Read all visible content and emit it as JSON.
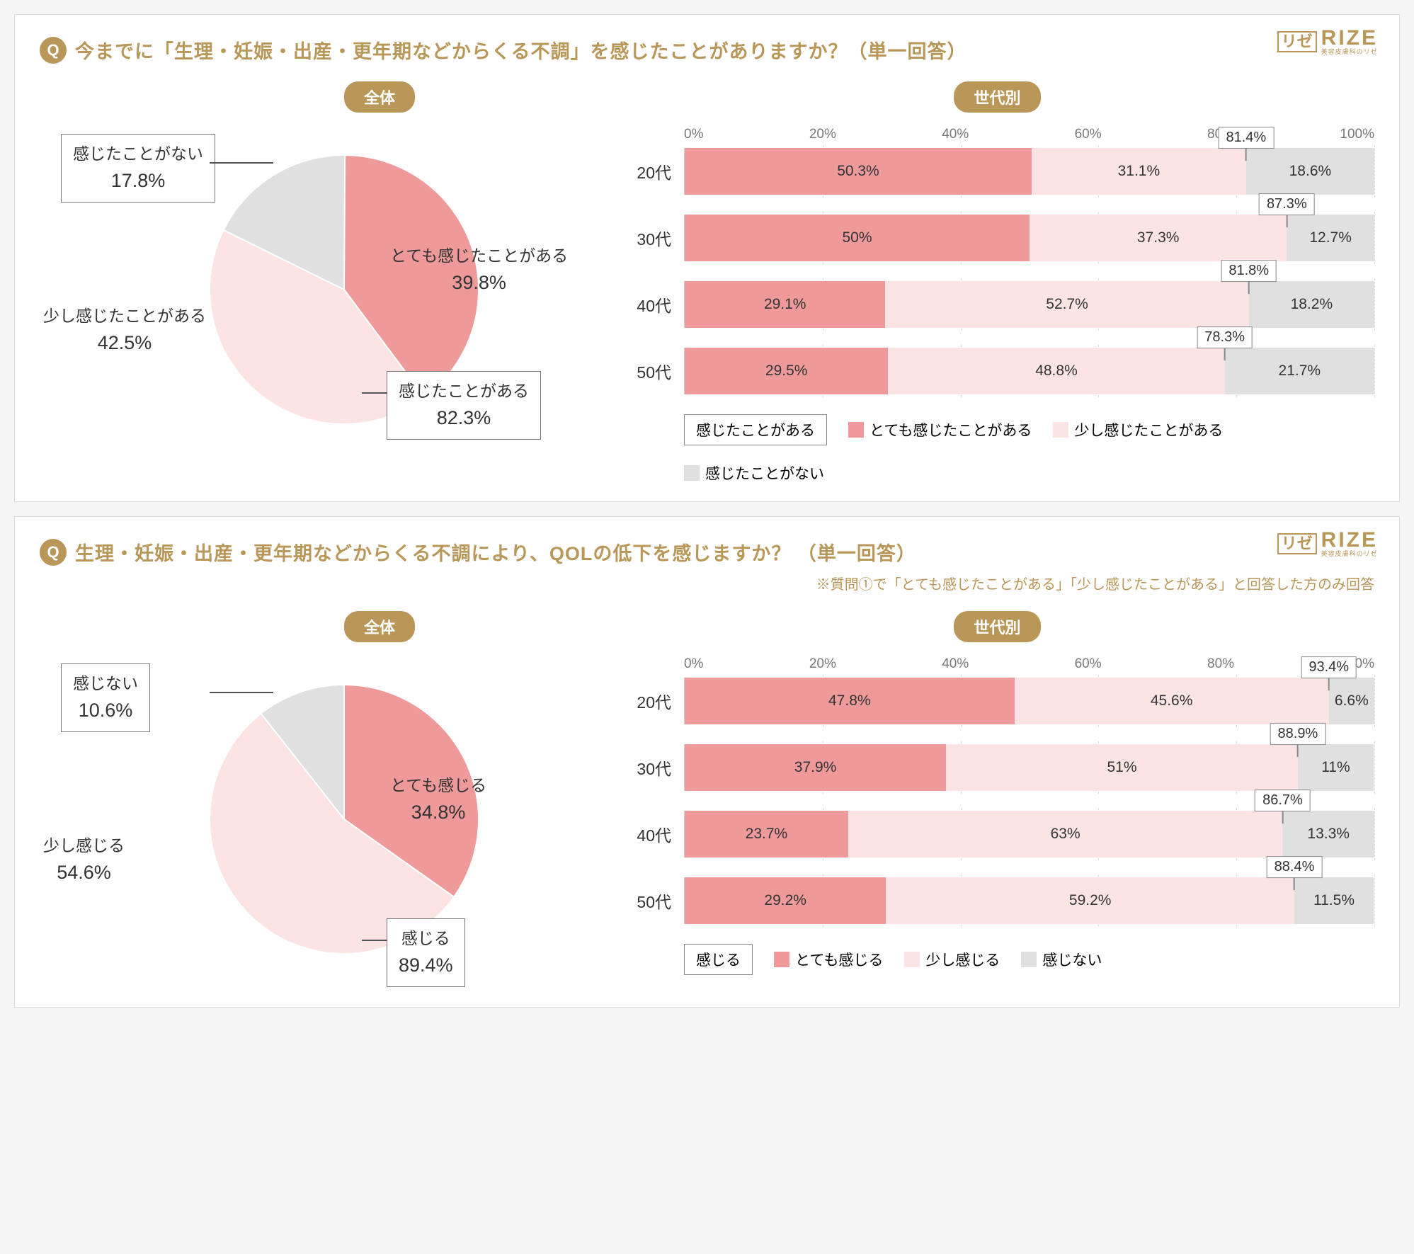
{
  "brand": {
    "mark": "リゼ",
    "name": "RIZE",
    "sub": "美容皮膚科のリゼ"
  },
  "colors": {
    "accent": "#b89758",
    "strong": "#ef9a9a",
    "light": "#fce4e4",
    "gray": "#e0e0e0",
    "border": "#888888",
    "text": "#333333"
  },
  "panels": [
    {
      "qbadge": "Q",
      "title": "今までに「生理・妊娠・出産・更年期などからくる不調」を感じたことがありますか？（単一回答）",
      "note": "",
      "pill_left": "全体",
      "pill_right": "世代別",
      "pie": {
        "slices": [
          {
            "key": "strong",
            "label": "とても感じたことがある",
            "value": 39.8
          },
          {
            "key": "light",
            "label": "少し感じたことがある",
            "value": 42.5
          },
          {
            "key": "gray",
            "label": "感じたことがない",
            "value": 17.8
          }
        ],
        "sum": {
          "label": "感じたことがある",
          "value": 82.3
        }
      },
      "axis": [
        "0%",
        "20%",
        "40%",
        "60%",
        "80%",
        "100%"
      ],
      "bars": [
        {
          "y": "20代",
          "a": 50.3,
          "b": 31.1,
          "c": 18.6,
          "sum": 81.4
        },
        {
          "y": "30代",
          "a": 50.0,
          "b": 37.3,
          "c": 12.7,
          "sum": 87.3
        },
        {
          "y": "40代",
          "a": 29.1,
          "b": 52.7,
          "c": 18.2,
          "sum": 81.8
        },
        {
          "y": "50代",
          "a": 29.5,
          "b": 48.8,
          "c": 21.7,
          "sum": 78.3
        }
      ],
      "legend": {
        "boxed": "感じたことがある",
        "items": [
          {
            "sw": "strong",
            "label": "とても感じたことがある"
          },
          {
            "sw": "light",
            "label": "少し感じたことがある"
          },
          {
            "sw": "gray",
            "label": "感じたことがない"
          }
        ]
      }
    },
    {
      "qbadge": "Q",
      "title": "生理・妊娠・出産・更年期などからくる不調により、QOLの低下を感じますか？ （単一回答）",
      "note": "※質問①で「とても感じたことがある」「少し感じたことがある」と回答した方のみ回答",
      "pill_left": "全体",
      "pill_right": "世代別",
      "pie": {
        "slices": [
          {
            "key": "strong",
            "label": "とても感じる",
            "value": 34.8
          },
          {
            "key": "light",
            "label": "少し感じる",
            "value": 54.6
          },
          {
            "key": "gray",
            "label": "感じない",
            "value": 10.6
          }
        ],
        "sum": {
          "label": "感じる",
          "value": 89.4
        }
      },
      "axis": [
        "0%",
        "20%",
        "40%",
        "60%",
        "80%",
        "100%"
      ],
      "bars": [
        {
          "y": "20代",
          "a": 47.8,
          "b": 45.6,
          "c": 6.6,
          "sum": 93.4
        },
        {
          "y": "30代",
          "a": 37.9,
          "b": 51.0,
          "c": 11.0,
          "sum": 88.9
        },
        {
          "y": "40代",
          "a": 23.7,
          "b": 63.0,
          "c": 13.3,
          "sum": 86.7
        },
        {
          "y": "50代",
          "a": 29.2,
          "b": 59.2,
          "c": 11.5,
          "sum": 88.4
        }
      ],
      "legend": {
        "boxed": "感じる",
        "items": [
          {
            "sw": "strong",
            "label": "とても感じる"
          },
          {
            "sw": "light",
            "label": "少し感じる"
          },
          {
            "sw": "gray",
            "label": "感じない"
          }
        ]
      }
    }
  ]
}
